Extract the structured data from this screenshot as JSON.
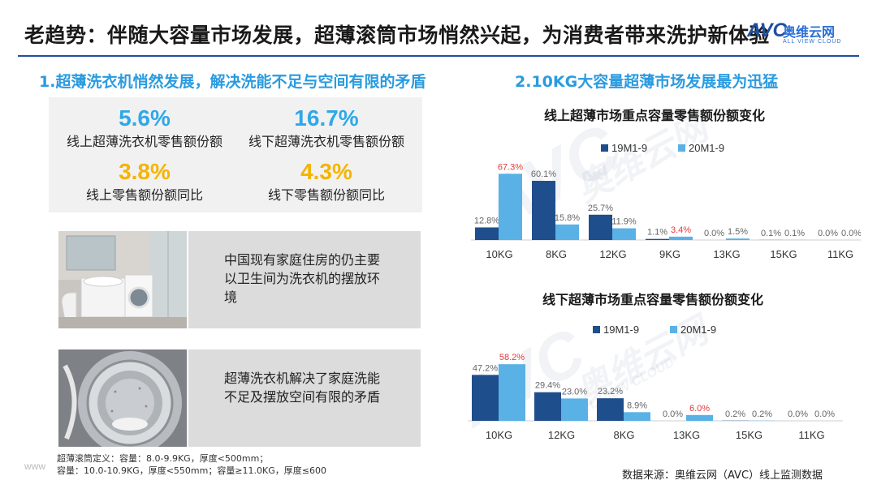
{
  "header": {
    "title": "老趋势：伴随大容量市场发展，超薄滚筒市场悄然兴起，为消费者带来洗护新体验",
    "brand": {
      "logo": "AVC",
      "name_cn": "奥维云网",
      "name_en": "ALL VIEW CLOUD"
    }
  },
  "left": {
    "section_title": "1.超薄洗衣机悄然发展，解决洗能不足与空间有限的矛盾",
    "stats": [
      {
        "value": "5.6%",
        "label": "线上超薄洗衣机零售额份额"
      },
      {
        "value": "16.7%",
        "label": "线下超薄洗衣机零售额份额"
      },
      {
        "value": "3.8%",
        "label": "线上零售额份额同比"
      },
      {
        "value": "4.3%",
        "label": "线下零售额份额同比"
      }
    ],
    "panels": [
      {
        "text": "中国现有家庭住房的仍主要以卫生间为洗衣机的摆放环境"
      },
      {
        "text": "超薄洗衣机解决了家庭洗能不足及摆放空间有限的矛盾"
      }
    ],
    "footnote_1": "超薄滚筒定义：容量：8.0-9.9KG，厚度<500mm；",
    "footnote_2": "容量：10.0-10.9KG，厚度<550mm；容量≥11.0KG，厚度≤600"
  },
  "right": {
    "section_title": "2.10KG大容量超薄市场发展最为迅猛"
  },
  "source": "数据来源：奥维云网（AVC）线上监测数据",
  "url_text": "www",
  "watermark": {
    "logo": "AVC",
    "cn": "奥维云网",
    "en": "ALL VIEW CLOUD"
  },
  "colors": {
    "series_dark": "#1f4e8c",
    "series_light": "#5ab1e6",
    "highlight": "#e23a3a",
    "accent": "#2a9be0",
    "stat_gold": "#f4b400",
    "stat_blue": "#2fa8e8"
  },
  "chart_data": [
    {
      "type": "bar",
      "title": "线上超薄市场重点容量零售额份额变化",
      "categories": [
        "10KG",
        "8KG",
        "12KG",
        "9KG",
        "13KG",
        "15KG",
        "11KG"
      ],
      "series": [
        {
          "name": "19M1-9",
          "values": [
            12.8,
            60.1,
            25.7,
            1.1,
            0.0,
            0.1,
            0.0
          ],
          "labels": [
            "12.8%",
            "60.1%",
            "25.7%",
            "1.1%",
            "0.0%",
            "0.1%",
            "0.0%"
          ]
        },
        {
          "name": "20M1-9",
          "values": [
            67.3,
            15.8,
            11.9,
            3.4,
            1.5,
            0.1,
            0.0
          ],
          "labels": [
            "67.3%",
            "15.8%",
            "11.9%",
            "3.4%",
            "1.5%",
            "0.1%",
            "0.0%"
          ]
        }
      ],
      "highlight_labels": [
        [
          false,
          false,
          false,
          false,
          false,
          false,
          false
        ],
        [
          true,
          false,
          false,
          true,
          false,
          false,
          false
        ]
      ],
      "ylim": [
        0,
        70
      ],
      "grid": false,
      "legend": "top"
    },
    {
      "type": "bar",
      "title": "线下超薄市场重点容量零售额份额变化",
      "categories": [
        "10KG",
        "12KG",
        "8KG",
        "13KG",
        "15KG",
        "11KG"
      ],
      "series": [
        {
          "name": "19M1-9",
          "values": [
            47.2,
            29.4,
            23.2,
            0.0,
            0.2,
            0.0
          ],
          "labels": [
            "47.2%",
            "29.4%",
            "23.2%",
            "0.0%",
            "0.2%",
            "0.0%"
          ]
        },
        {
          "name": "20M1-9",
          "values": [
            58.2,
            23.0,
            8.9,
            6.0,
            0.2,
            0.0
          ],
          "labels": [
            "58.2%",
            "23.0%",
            "8.9%",
            "6.0%",
            "0.2%",
            "0.0%"
          ]
        }
      ],
      "highlight_labels": [
        [
          false,
          false,
          false,
          false,
          false,
          false
        ],
        [
          true,
          false,
          false,
          true,
          false,
          false
        ]
      ],
      "ylim": [
        0,
        60
      ],
      "grid": false,
      "legend": "top"
    }
  ]
}
